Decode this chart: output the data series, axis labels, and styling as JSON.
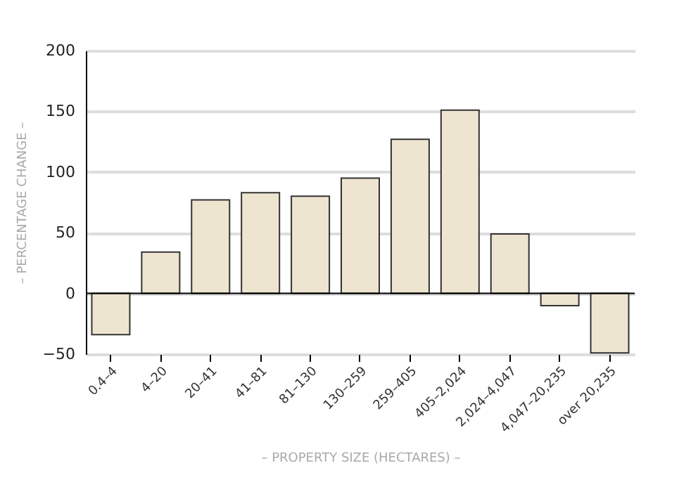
{
  "chart_data": {
    "type": "bar",
    "xlabel": "– PROPERTY SIZE (HECTARES) –",
    "ylabel": "– PERCENTAGE CHANGE –",
    "categories": [
      "0.4–4",
      "4–20",
      "20–41",
      "41–81",
      "81–130",
      "130–259",
      "259–405",
      "405–2,024",
      "2,024–4,047",
      "4,047–20,235",
      "over 20,235"
    ],
    "values": [
      -34,
      34,
      77,
      83,
      80,
      95,
      127,
      151,
      49,
      -10,
      -49
    ],
    "color": "#ede5cf",
    "ylim": [
      -50,
      200
    ],
    "yticks": [
      -50,
      0,
      50,
      100,
      150,
      200
    ],
    "grid": "y"
  }
}
